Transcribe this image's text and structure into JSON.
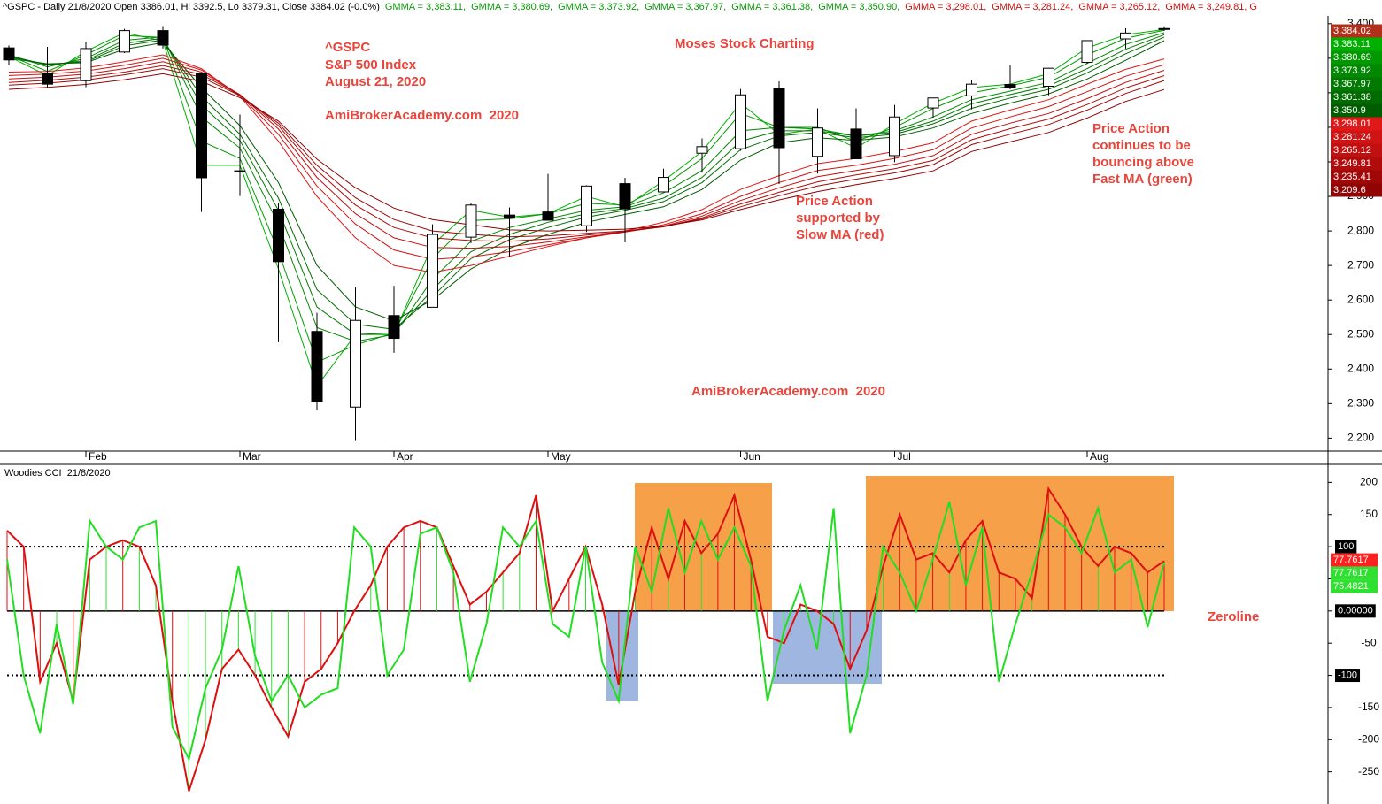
{
  "chart_data": [
    {
      "type": "candlestick",
      "title": "^GSPC - Daily 21/8/2020 Open 3386.01, Hi 3392.5, Lo 3379.31, Close 3384.02 (-0.0%)",
      "readouts": [
        {
          "text": "GMMA = 3,383.11,",
          "color": "#0a9a0a"
        },
        {
          "text": "GMMA = 3,380.69,",
          "color": "#0a9a0a"
        },
        {
          "text": "GMMA = 3,373.92,",
          "color": "#0a9a0a"
        },
        {
          "text": "GMMA = 3,367.97,",
          "color": "#0a9a0a"
        },
        {
          "text": "GMMA = 3,361.38,",
          "color": "#0a9a0a"
        },
        {
          "text": "GMMA = 3,350.90,",
          "color": "#0a9a0a"
        },
        {
          "text": "GMMA = 3,298.01,",
          "color": "#d01010"
        },
        {
          "text": "GMMA = 3,281.24,",
          "color": "#d01010"
        },
        {
          "text": "GMMA = 3,265.12,",
          "color": "#d01010"
        },
        {
          "text": "GMMA = 3,249.81, G",
          "color": "#d01010"
        }
      ],
      "close_label": "3,384.02",
      "categories": [
        null,
        null,
        "Feb",
        null,
        null,
        null,
        "Mar",
        null,
        null,
        null,
        "Apr",
        null,
        null,
        null,
        "May",
        null,
        null,
        null,
        null,
        "Jun",
        null,
        null,
        null,
        "Jul",
        null,
        null,
        null,
        null,
        "Aug",
        null,
        null
      ],
      "open": [
        3330,
        3255,
        3235,
        3318,
        3380,
        3257,
        2974,
        2863,
        2509,
        2290,
        2555,
        2579,
        2782,
        2846,
        2855,
        2815,
        2937,
        2913,
        3025,
        3038,
        3213,
        3016,
        3095,
        3018,
        3156,
        3191,
        3224,
        3219,
        3288,
        3356,
        3386.01
      ],
      "high": [
        3337,
        3333,
        3348,
        3385,
        3393,
        3259,
        3137,
        2882,
        2563,
        2637,
        2641,
        2819,
        2880,
        2868,
        2965,
        2932,
        2954,
        2980,
        3068,
        3211,
        3233,
        3155,
        3155,
        3165,
        3184,
        3238,
        3280,
        3272,
        3352,
        3387,
        3392.5
      ],
      "low": [
        3280,
        3214,
        3216,
        3315,
        3328,
        2855,
        2901,
        2478,
        2280,
        2192,
        2447,
        2579,
        2765,
        2727,
        2831,
        2797,
        2767,
        2913,
        2969,
        3032,
        2936,
        2966,
        3009,
        2999,
        3128,
        3152,
        3210,
        3193,
        3284,
        3328,
        3379.31
      ],
      "close": [
        3295,
        3225,
        3328,
        3380,
        3338,
        2954,
        2972,
        2711,
        2305,
        2541,
        2489,
        2790,
        2875,
        2837,
        2831,
        2930,
        2864,
        2955,
        3044,
        3194,
        3041,
        3098,
        3009,
        3130,
        3185,
        3225,
        3216,
        3271,
        3351,
        3373,
        3384.02
      ],
      "up_color": "#ffffff",
      "down_color": "#000000",
      "series": [
        {
          "name": "GMMA",
          "color": "#00b000",
          "last_label": "3,383.11",
          "values": [
            3305,
            3250,
            3320,
            3374,
            3350,
            2990,
            2990,
            2690,
            2350,
            2500,
            2500,
            2760,
            2860,
            2840,
            2850,
            2900,
            2870,
            2945,
            3030,
            3170,
            3080,
            3095,
            3040,
            3110,
            3170,
            3215,
            3225,
            3255,
            3330,
            3368,
            3383.11
          ]
        },
        {
          "name": "GMMA",
          "color": "#009a00",
          "last_label": "3,380.69",
          "values": [
            3308,
            3262,
            3310,
            3366,
            3360,
            3060,
            3010,
            2740,
            2420,
            2470,
            2505,
            2720,
            2830,
            2835,
            2850,
            2880,
            2875,
            2930,
            3010,
            3140,
            3100,
            3100,
            3060,
            3100,
            3155,
            3200,
            3220,
            3245,
            3310,
            3358,
            3380.69
          ]
        },
        {
          "name": "GMMA",
          "color": "#008800",
          "last_label": "3,373.92",
          "values": [
            3310,
            3275,
            3300,
            3352,
            3362,
            3130,
            3040,
            2820,
            2520,
            2480,
            2500,
            2660,
            2770,
            2810,
            2835,
            2860,
            2870,
            2910,
            2975,
            3090,
            3100,
            3095,
            3075,
            3090,
            3130,
            3180,
            3205,
            3230,
            3285,
            3340,
            3373.92
          ]
        },
        {
          "name": "GMMA",
          "color": "#007a00",
          "last_label": "3,367.97",
          "values": [
            3308,
            3280,
            3294,
            3343,
            3358,
            3165,
            3062,
            2860,
            2580,
            2500,
            2505,
            2630,
            2740,
            2790,
            2825,
            2850,
            2865,
            2895,
            2955,
            3060,
            3090,
            3090,
            3075,
            3085,
            3118,
            3168,
            3195,
            3220,
            3270,
            3326,
            3367.97
          ]
        },
        {
          "name": "GMMA",
          "color": "#006c00",
          "last_label": "3,361.38",
          "values": [
            3305,
            3282,
            3290,
            3336,
            3353,
            3190,
            3080,
            2895,
            2630,
            2530,
            2515,
            2610,
            2720,
            2775,
            2810,
            2840,
            2860,
            2885,
            2940,
            3035,
            3075,
            3085,
            3070,
            3080,
            3110,
            3155,
            3185,
            3210,
            3258,
            3313,
            3361.38
          ]
        },
        {
          "name": "GMMA",
          "color": "#005c00",
          "last_label": "3,350.9",
          "values": [
            3300,
            3284,
            3287,
            3326,
            3345,
            3215,
            3105,
            2940,
            2700,
            2580,
            2540,
            2600,
            2690,
            2750,
            2790,
            2825,
            2848,
            2870,
            2920,
            3005,
            3055,
            3070,
            3062,
            3072,
            3098,
            3140,
            3170,
            3197,
            3240,
            3294,
            3350.9
          ]
        },
        {
          "name": "GMMA",
          "color": "#e01818",
          "last_label": "3,298.01",
          "values": [
            3260,
            3262,
            3272,
            3290,
            3310,
            3270,
            3190,
            3060,
            2900,
            2780,
            2700,
            2680,
            2700,
            2727,
            2755,
            2780,
            2800,
            2825,
            2862,
            2920,
            2960,
            2995,
            3010,
            3030,
            3055,
            3118,
            3150,
            3180,
            3225,
            3268,
            3298.01
          ]
        },
        {
          "name": "GMMA",
          "color": "#d01414",
          "last_label": "3,281.24",
          "values": [
            3250,
            3254,
            3263,
            3280,
            3300,
            3266,
            3193,
            3080,
            2930,
            2820,
            2745,
            2718,
            2725,
            2740,
            2760,
            2780,
            2797,
            2818,
            2850,
            2900,
            2940,
            2975,
            2990,
            3010,
            3035,
            3098,
            3130,
            3160,
            3203,
            3248,
            3281.24
          ]
        },
        {
          "name": "GMMA",
          "color": "#c01010",
          "last_label": "3,265.12",
          "values": [
            3240,
            3245,
            3254,
            3270,
            3290,
            3260,
            3195,
            3095,
            2955,
            2850,
            2780,
            2752,
            2750,
            2755,
            2768,
            2783,
            2797,
            2814,
            2843,
            2888,
            2925,
            2957,
            2975,
            2993,
            3018,
            3080,
            3112,
            3140,
            3183,
            3230,
            3265.12
          ]
        },
        {
          "name": "GMMA",
          "color": "#b00c0c",
          "last_label": "3,249.81",
          "values": [
            3230,
            3236,
            3245,
            3260,
            3279,
            3253,
            3194,
            3105,
            2975,
            2875,
            2810,
            2780,
            2772,
            2770,
            2777,
            2788,
            2798,
            2812,
            2838,
            2878,
            2912,
            2942,
            2962,
            2980,
            3004,
            3064,
            3096,
            3124,
            3166,
            3214,
            3249.81
          ]
        },
        {
          "name": "GMMA",
          "color": "#a00808",
          "last_label": "3,235.41",
          "values": [
            3222,
            3228,
            3237,
            3252,
            3270,
            3245,
            3192,
            3112,
            2990,
            2896,
            2833,
            2800,
            2790,
            2783,
            2786,
            2793,
            2800,
            2812,
            2835,
            2870,
            2902,
            2930,
            2950,
            2968,
            2992,
            3050,
            3080,
            3108,
            3150,
            3198,
            3235.41
          ]
        },
        {
          "name": "GMMA",
          "color": "#900404",
          "last_label": "3,209.6",
          "values": [
            3210,
            3216,
            3224,
            3238,
            3255,
            3233,
            3186,
            3118,
            3008,
            2925,
            2866,
            2833,
            2818,
            2803,
            2800,
            2802,
            2805,
            2814,
            2832,
            2862,
            2890,
            2914,
            2934,
            2952,
            2974,
            3030,
            3058,
            3085,
            3127,
            3175,
            3209.6
          ]
        }
      ],
      "ylim": [
        2160,
        3420
      ],
      "yticks": [
        {
          "value": 2200,
          "label": "2,200"
        },
        {
          "value": 2300,
          "label": "2,300"
        },
        {
          "value": 2400,
          "label": "2,400"
        },
        {
          "value": 2500,
          "label": "2,500"
        },
        {
          "value": 2600,
          "label": "2,600"
        },
        {
          "value": 2700,
          "label": "2,700"
        },
        {
          "value": 2800,
          "label": "2,800"
        },
        {
          "value": 2900,
          "label": "2,900"
        },
        {
          "value": 3000,
          "label": "3,000"
        },
        {
          "value": 3100,
          "label": "3,100"
        },
        {
          "value": 3200,
          "label": "3,200"
        },
        {
          "value": 3300,
          "label": "3,300"
        },
        {
          "value": 3400,
          "label": "3,400"
        }
      ],
      "annotations": [
        "^GSPC",
        "S&P 500 Index",
        "August 21, 2020",
        "AmiBrokerAcademy.com  2020",
        "Moses Stock Charting",
        "Price Action",
        "supported by",
        "Slow MA (red)",
        "Price Action",
        "continues to be",
        "bouncing above",
        "Fast MA (green)",
        "AmiBrokerAcademy.com  2020"
      ]
    },
    {
      "type": "cci",
      "title": "Woodies CCI  21/8/2020",
      "series": [
        {
          "color": "#e01010",
          "values": [
            125,
            100,
            -110,
            -50,
            -140,
            80,
            100,
            110,
            100,
            40,
            -140,
            -280,
            -200,
            -90,
            -60,
            -100,
            -150,
            -195,
            -110,
            -90,
            -50,
            0,
            40,
            100,
            130,
            140,
            130,
            70,
            10,
            30,
            60,
            90,
            180,
            0,
            50,
            100,
            10,
            -115,
            30,
            130,
            50,
            140,
            90,
            120,
            180,
            80,
            -40,
            -50,
            10,
            0,
            -20,
            -90,
            -30,
            70,
            150,
            80,
            90,
            60,
            110,
            140,
            60,
            50,
            20,
            190,
            150,
            100,
            70,
            100,
            90,
            60,
            77.7617
          ]
        },
        {
          "color": "#30e030",
          "values": [
            80,
            -100,
            -190,
            -20,
            -145,
            140,
            100,
            80,
            130,
            140,
            -180,
            -230,
            -120,
            -60,
            70,
            -70,
            -140,
            -100,
            -150,
            -130,
            -120,
            130,
            100,
            -100,
            -60,
            120,
            130,
            60,
            -110,
            -20,
            130,
            100,
            140,
            -20,
            -40,
            100,
            -80,
            -140,
            100,
            30,
            160,
            60,
            140,
            80,
            130,
            70,
            -140,
            -30,
            40,
            -60,
            160,
            -190,
            -100,
            100,
            60,
            0,
            80,
            170,
            40,
            130,
            -110,
            -20,
            60,
            150,
            130,
            90,
            160,
            60,
            80,
            -25,
            75.4821
          ]
        }
      ],
      "readouts": [
        {
          "text": "77.7617",
          "color": "#ff2020"
        },
        {
          "text": "77.7617",
          "color": "#30e030"
        },
        {
          "text": "75.4821",
          "color": "#30e030"
        }
      ],
      "levels": [
        {
          "value": 100,
          "style": "dotted"
        },
        {
          "value": 0,
          "style": "solid"
        },
        {
          "value": -100,
          "style": "dotted"
        }
      ],
      "ylim": [
        -300,
        228
      ],
      "yticks": [
        200,
        150,
        100,
        50,
        {
          "value": 0,
          "label": "0.00000"
        },
        -50,
        -100,
        -150,
        -200,
        -250
      ],
      "annotations": [
        "Zeroline"
      ]
    }
  ]
}
